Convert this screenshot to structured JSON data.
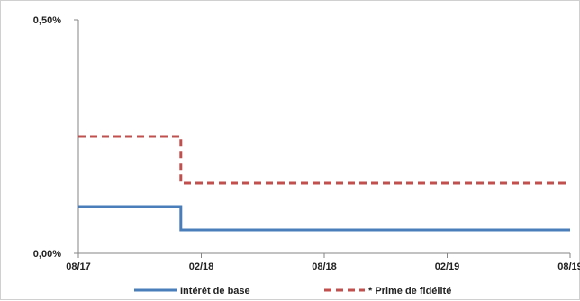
{
  "chart_data": {
    "type": "line",
    "title": "",
    "xlabel": "",
    "ylabel": "",
    "ylim": [
      0,
      0.5
    ],
    "xlim": [
      "2017-08",
      "2019-08"
    ],
    "y_ticks": [
      {
        "value": 0,
        "label": "0,00%"
      },
      {
        "value": 0.5,
        "label": "0,50%"
      }
    ],
    "x_ticks": [
      {
        "value": "2017-08",
        "label": "08/17"
      },
      {
        "value": "2018-02",
        "label": "02/18"
      },
      {
        "value": "2018-08",
        "label": "08/18"
      },
      {
        "value": "2019-02",
        "label": "02/19"
      },
      {
        "value": "2019-08",
        "label": "08/19"
      }
    ],
    "series": [
      {
        "name": "Intérêt de base",
        "color": "#4a7ebb",
        "style": "solid",
        "points": [
          {
            "x": "2017-08",
            "y": 0.1
          },
          {
            "x": "2018-01",
            "y": 0.1
          },
          {
            "x": "2018-01",
            "y": 0.05
          },
          {
            "x": "2019-08",
            "y": 0.05
          }
        ]
      },
      {
        "name": "* Prime de fidélité",
        "color": "#c0504d",
        "style": "dashed",
        "points": [
          {
            "x": "2017-08",
            "y": 0.25
          },
          {
            "x": "2018-01",
            "y": 0.25
          },
          {
            "x": "2018-01",
            "y": 0.15
          },
          {
            "x": "2019-08",
            "y": 0.15
          }
        ]
      }
    ],
    "grid": false,
    "legend_position": "bottom"
  }
}
